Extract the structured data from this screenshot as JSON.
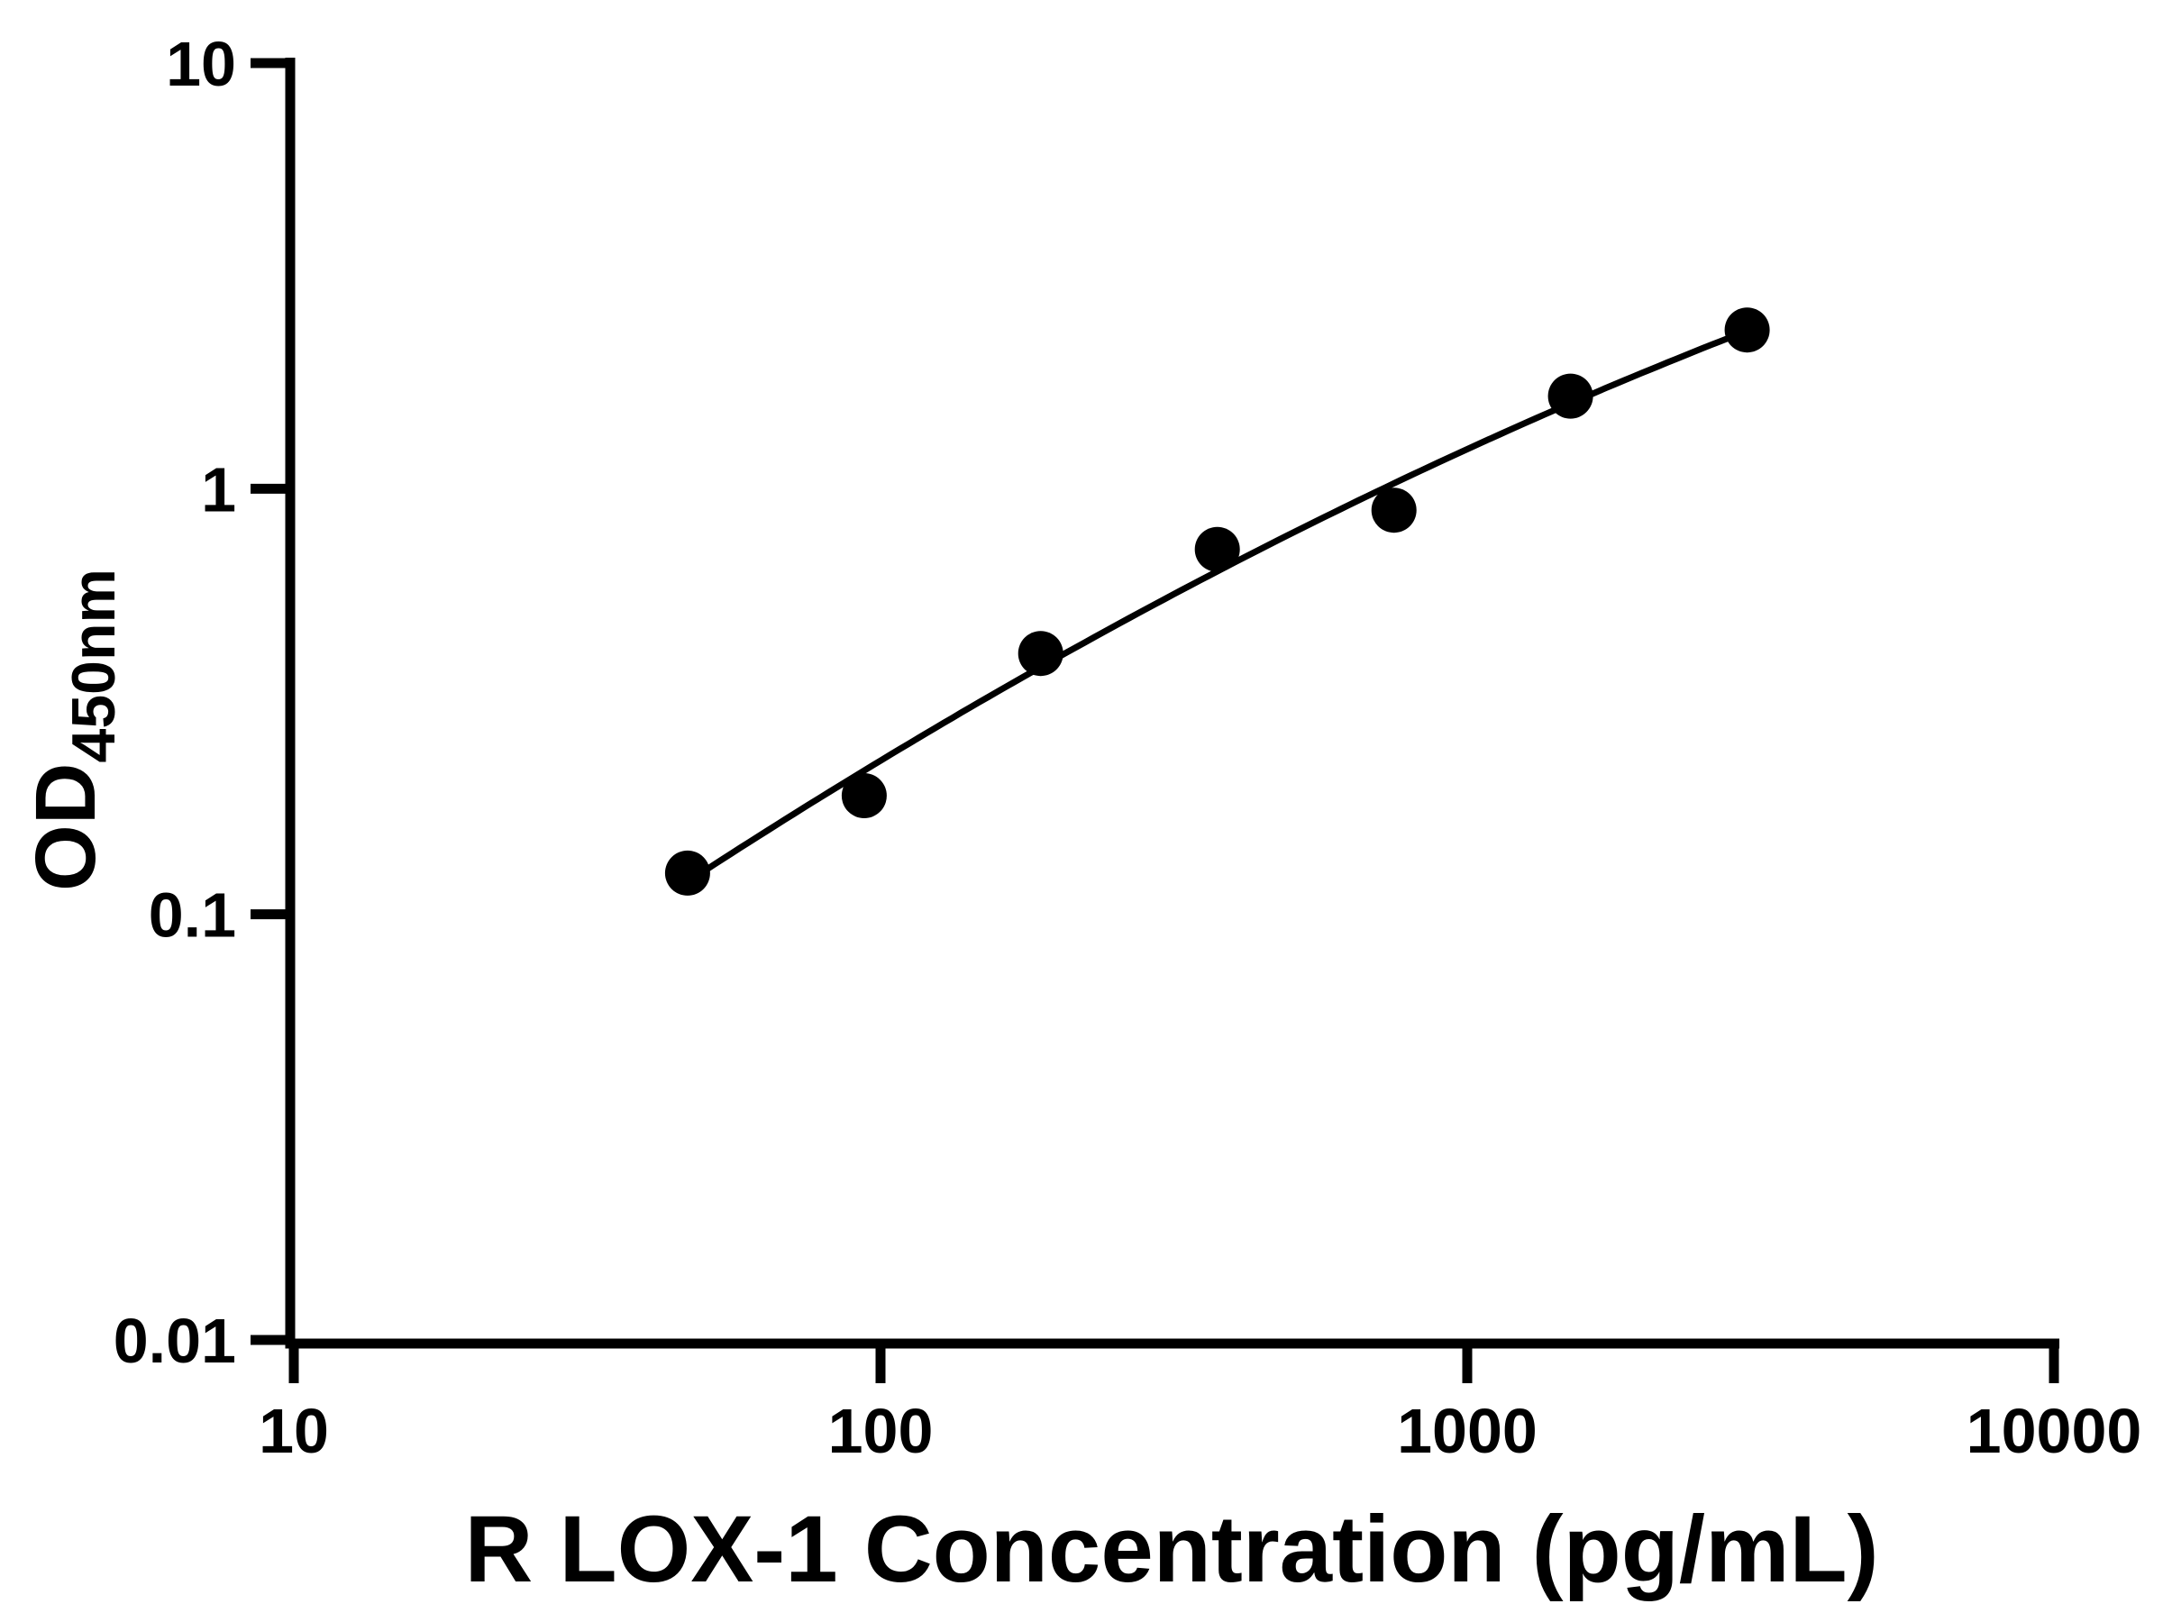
{
  "chart_data": {
    "type": "scatter",
    "title": "",
    "xlabel": "R LOX-1 Concentration (pg/mL)",
    "ylabel_main": "OD",
    "ylabel_sub": "450nm",
    "x_scale": "log",
    "y_scale": "log",
    "xlim": [
      10,
      10000
    ],
    "ylim": [
      0.01,
      10
    ],
    "x_ticks": [
      10,
      100,
      1000,
      10000
    ],
    "x_tick_labels": [
      "10",
      "100",
      "1000",
      "10000"
    ],
    "y_ticks": [
      10,
      1,
      0.1,
      0.01
    ],
    "y_tick_labels": [
      "10",
      "1",
      "0.1",
      "0.01"
    ],
    "grid": false,
    "legend": "none",
    "series": [
      {
        "name": "standard-curve-points",
        "marker": "circle",
        "marker_color": "#000000",
        "x": [
          46.9,
          93.8,
          187.5,
          375,
          750,
          1500,
          3000
        ],
        "y": [
          0.125,
          0.19,
          0.41,
          0.72,
          0.89,
          1.65,
          2.36
        ]
      }
    ],
    "fit_line": {
      "name": "standard-curve-fit",
      "description": "smooth sigmoidal standard-curve fit through the points (log-log)",
      "color": "#000000"
    }
  },
  "colors": {
    "background": "#ffffff",
    "axis": "#000000",
    "marker": "#000000",
    "line": "#000000",
    "text": "#000000"
  }
}
